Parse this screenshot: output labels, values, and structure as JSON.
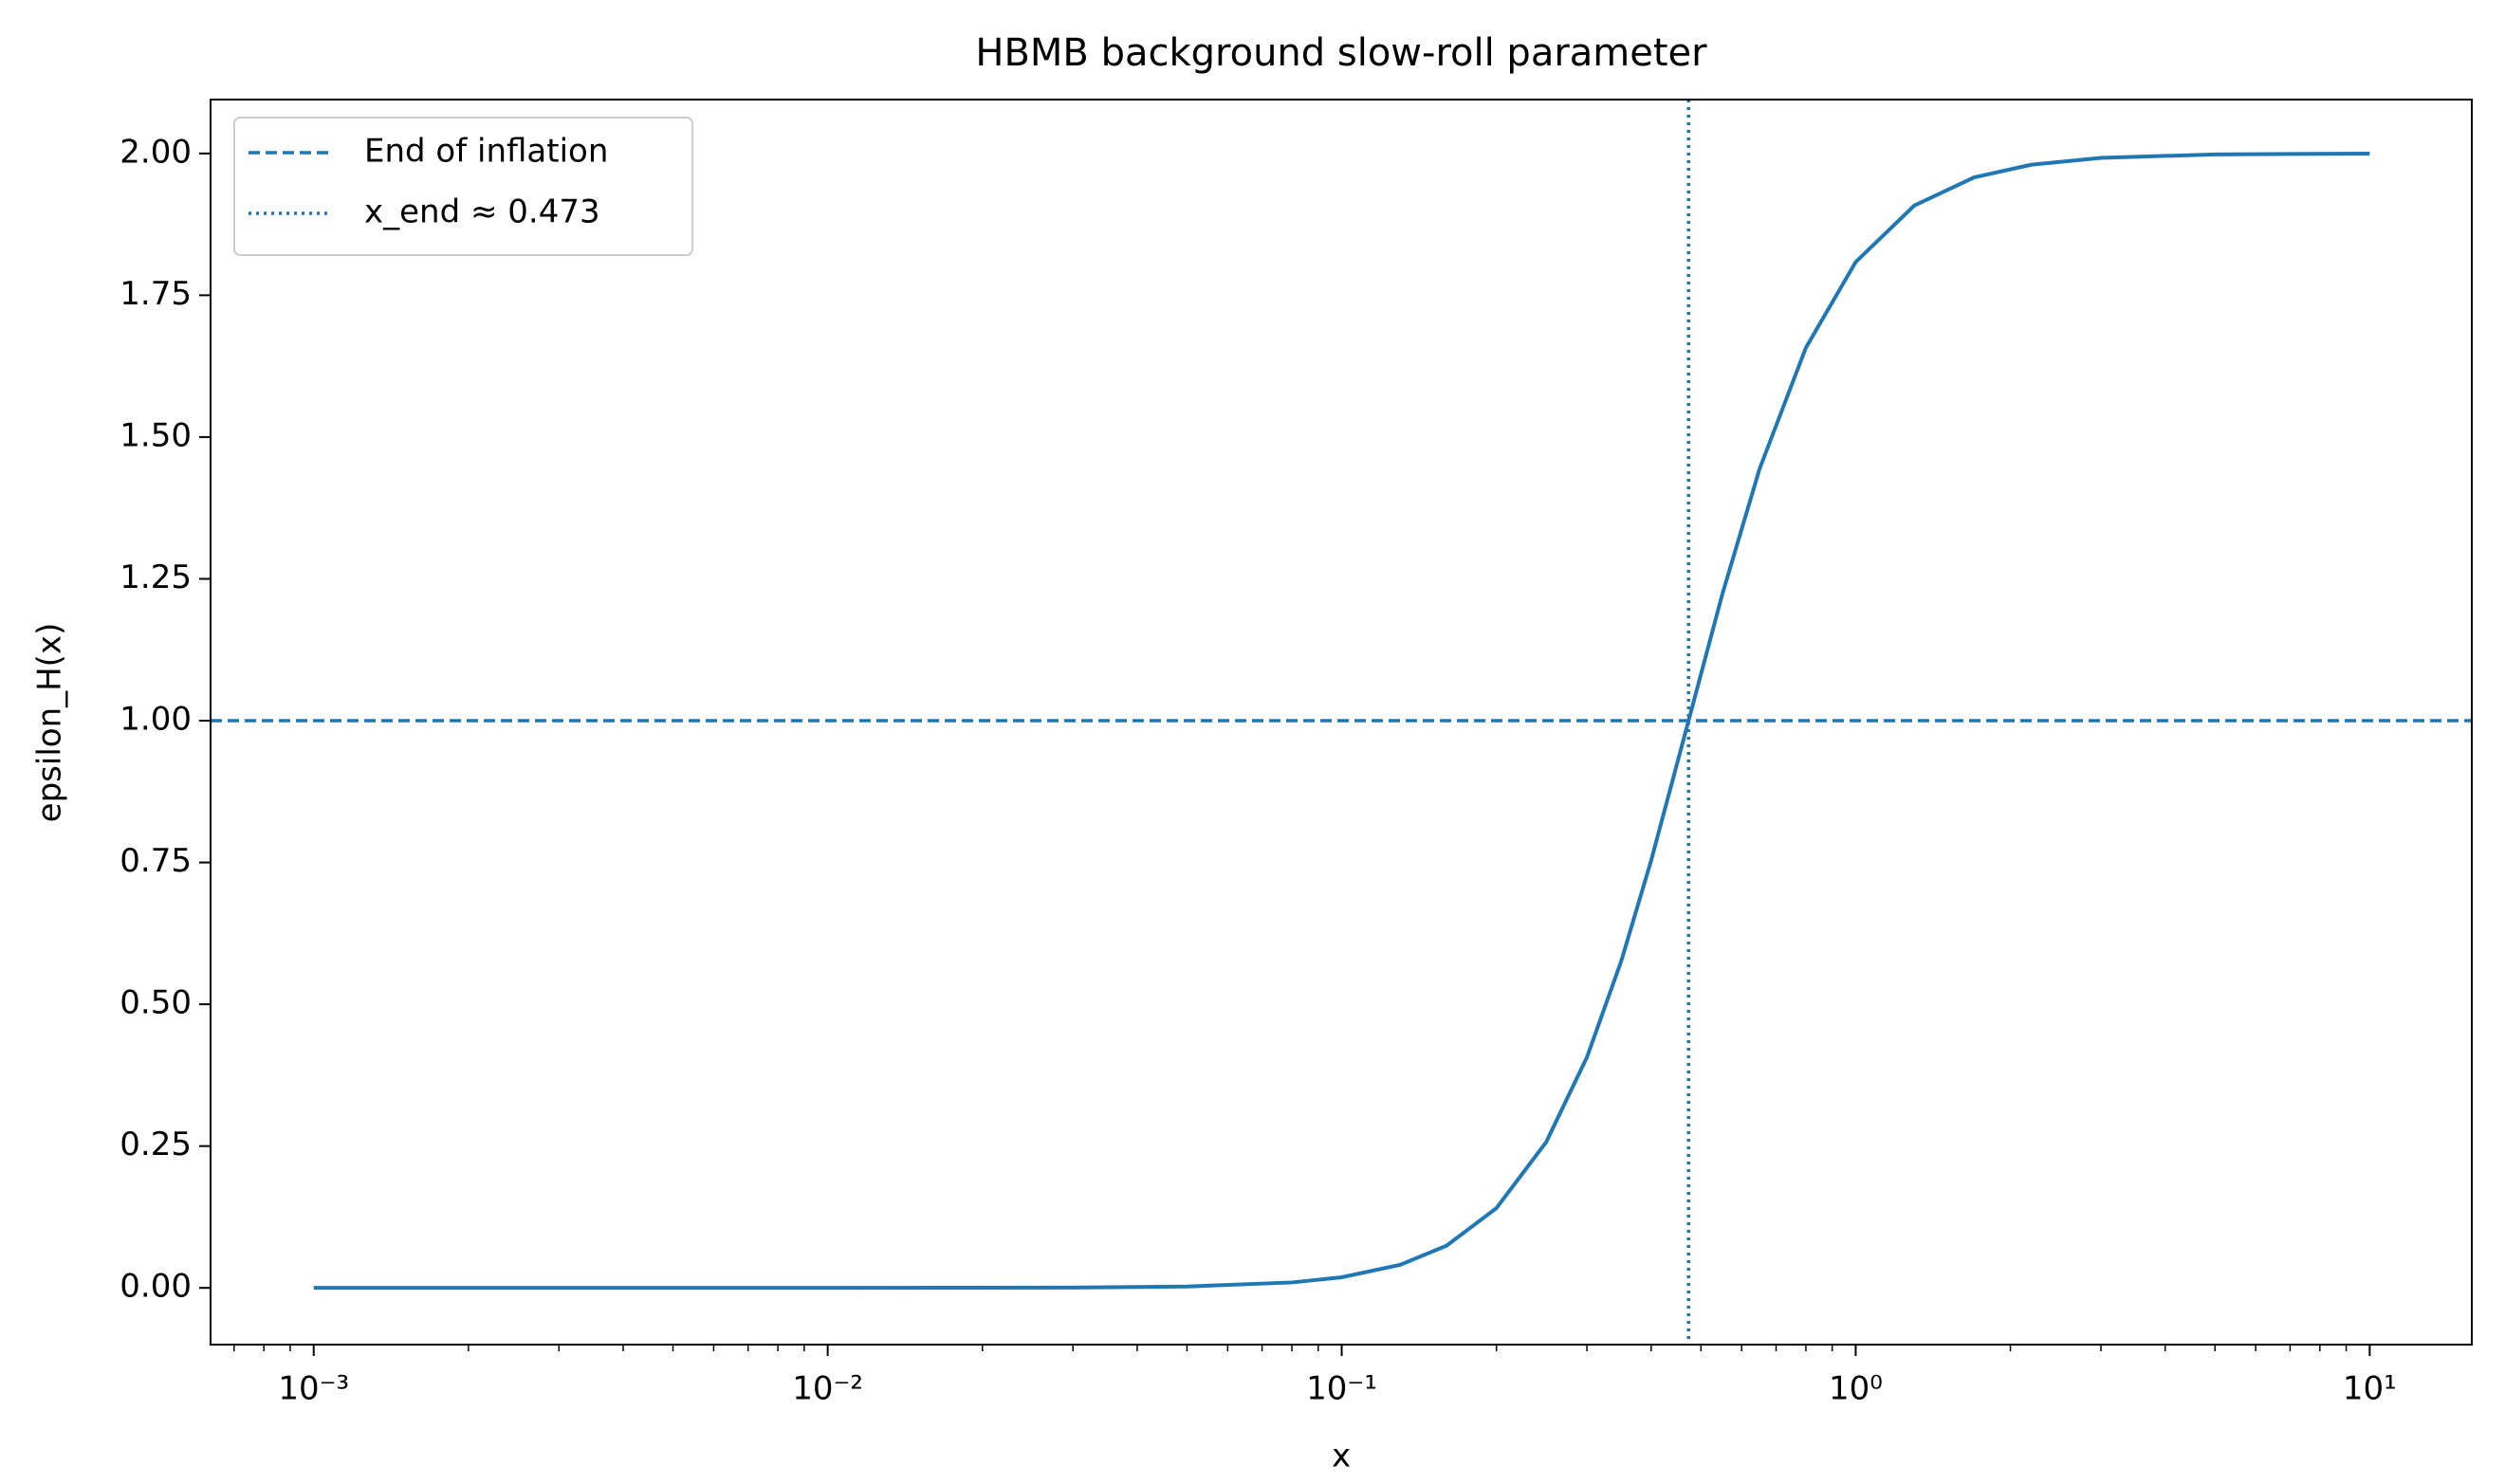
{
  "chart_data": {
    "type": "line",
    "title": "HBMB background slow-roll parameter",
    "x_label": "x",
    "y_label": "epsilon_H(x)",
    "x_scale": "log",
    "x": [
      0.001,
      0.01,
      0.03,
      0.05,
      0.08,
      0.1,
      0.13,
      0.16,
      0.2,
      0.25,
      0.3,
      0.35,
      0.4,
      0.473,
      0.55,
      0.65,
      0.8,
      1,
      1.3,
      1.7,
      2.2,
      3,
      5,
      10
    ],
    "series": [
      {
        "color": "#1f77b4",
        "values": [
          0,
          0,
          0.0005,
          0.0024,
          0.0096,
          0.0187,
          0.0407,
          0.0745,
          0.1406,
          0.2573,
          0.4066,
          0.5767,
          0.7536,
          1.0,
          1.2225,
          1.4437,
          1.6575,
          1.8086,
          1.9081,
          1.9578,
          1.9803,
          1.9922,
          1.9983,
          1.9998
        ]
      }
    ],
    "reference_lines": [
      {
        "name": "End of inflation",
        "orientation": "horizontal",
        "value": 1,
        "style": "dashed",
        "color": "#1f77b4"
      },
      {
        "name": "x_end ≈ 0.473",
        "orientation": "vertical",
        "value": 0.473,
        "style": "dotted",
        "color": "#1f77b4"
      }
    ],
    "xlim": [
      0.00063,
      15.8
    ],
    "ylim": [
      -0.1,
      2.095
    ],
    "xticks": [
      {
        "value": 0.001,
        "label": "10⁻³"
      },
      {
        "value": 0.01,
        "label": "10⁻²"
      },
      {
        "value": 0.1,
        "label": "10⁻¹"
      },
      {
        "value": 1,
        "label": "10⁰"
      },
      {
        "value": 10,
        "label": "10¹"
      }
    ],
    "xminorticks": [
      0.0007,
      0.0008,
      0.0009,
      0.002,
      0.003,
      0.004,
      0.005,
      0.006,
      0.007,
      0.008,
      0.009,
      0.02,
      0.03,
      0.04,
      0.05,
      0.06,
      0.07,
      0.08,
      0.09,
      0.2,
      0.3,
      0.4,
      0.5,
      0.6,
      0.7,
      0.8,
      0.9,
      2,
      3,
      4,
      5,
      6,
      7,
      8,
      9
    ],
    "yticks": [
      {
        "value": 0,
        "label": "0.00"
      },
      {
        "value": 0.25,
        "label": "0.25"
      },
      {
        "value": 0.5,
        "label": "0.50"
      },
      {
        "value": 0.75,
        "label": "0.75"
      },
      {
        "value": 1,
        "label": "1.00"
      },
      {
        "value": 1.25,
        "label": "1.25"
      },
      {
        "value": 1.5,
        "label": "1.50"
      },
      {
        "value": 1.75,
        "label": "1.75"
      },
      {
        "value": 2,
        "label": "2.00"
      }
    ],
    "legend": "upper left",
    "grid": false
  }
}
